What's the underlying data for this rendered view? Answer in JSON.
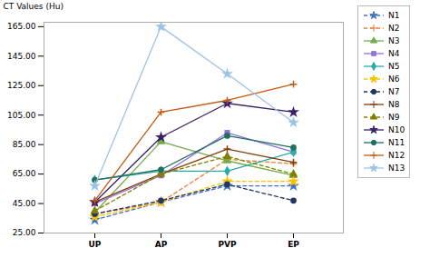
{
  "chart_data": {
    "type": "line",
    "categories": [
      "UP",
      "AP",
      "PVP",
      "EP"
    ],
    "series": [
      {
        "name": "N1",
        "values": [
          34,
          46,
          57,
          57
        ],
        "color": "#4472C4",
        "line_style": "dashed",
        "marker": "star"
      },
      {
        "name": "N2",
        "values": [
          38,
          46,
          75,
          72
        ],
        "color": "#ED7D31",
        "line_style": "dashed",
        "marker": "plus"
      },
      {
        "name": "N3",
        "values": [
          39,
          87,
          74,
          64
        ],
        "color": "#70AD47",
        "line_style": "solid",
        "marker": "triangle"
      },
      {
        "name": "N4",
        "values": [
          45,
          64,
          93,
          80
        ],
        "color": "#9370DB",
        "line_style": "solid",
        "marker": "square"
      },
      {
        "name": "N5",
        "values": [
          61,
          67,
          67,
          80
        ],
        "color": "#2AACAC",
        "line_style": "solid",
        "marker": "diamond"
      },
      {
        "name": "N6",
        "values": [
          36,
          46,
          60,
          60
        ],
        "color": "#FFC000",
        "line_style": "dashed",
        "marker": "star"
      },
      {
        "name": "N7",
        "values": [
          38,
          47,
          58,
          47
        ],
        "color": "#203864",
        "line_style": "dashed",
        "marker": "circle"
      },
      {
        "name": "N8",
        "values": [
          46,
          65,
          82,
          73
        ],
        "color": "#843C0C",
        "line_style": "solid",
        "marker": "plus"
      },
      {
        "name": "N9",
        "values": [
          40,
          65,
          77,
          65
        ],
        "color": "#808000",
        "line_style": "dashed",
        "marker": "triangle"
      },
      {
        "name": "N10",
        "values": [
          46,
          90,
          113,
          107
        ],
        "color": "#3B1F6B",
        "line_style": "solid",
        "marker": "star"
      },
      {
        "name": "N11",
        "values": [
          61,
          68,
          91,
          83
        ],
        "color": "#1F7060",
        "line_style": "solid",
        "marker": "circle"
      },
      {
        "name": "N12",
        "values": [
          47,
          107,
          115,
          126
        ],
        "color": "#C45911",
        "line_style": "solid",
        "marker": "plus"
      },
      {
        "name": "N13",
        "values": [
          57,
          165,
          133,
          100
        ],
        "color": "#9DC3E6",
        "line_style": "solid",
        "marker": "star"
      }
    ],
    "ylabel": "CT Values (Hu)",
    "ylim": [
      25,
      168
    ],
    "yticks": [
      {
        "value": 25,
        "label": "25.00"
      },
      {
        "value": 45,
        "label": "45.00"
      },
      {
        "value": 65,
        "label": "65.00"
      },
      {
        "value": 85,
        "label": "85.00"
      },
      {
        "value": 105,
        "label": "105.00"
      },
      {
        "value": 125,
        "label": "125.00"
      },
      {
        "value": 145,
        "label": "145.00"
      },
      {
        "value": 165,
        "label": "165.00"
      }
    ],
    "grid": false,
    "legend": "right"
  }
}
